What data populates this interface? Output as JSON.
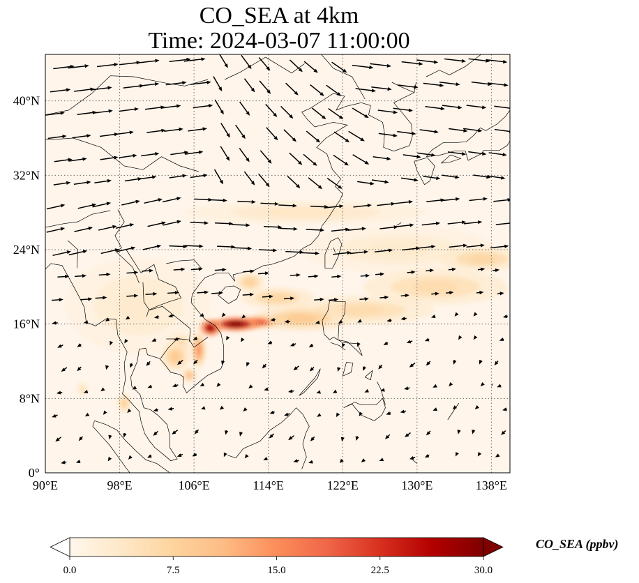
{
  "title": {
    "line1": "CO_SEA at 4km",
    "line2": "Time: 2024-03-07 11:00:00"
  },
  "map": {
    "projection": "PlateCarree",
    "lon_range": [
      90,
      140
    ],
    "lat_range": [
      0,
      45
    ],
    "lon_ticks": [
      {
        "value": 90,
        "label": "90°E"
      },
      {
        "value": 98,
        "label": "98°E"
      },
      {
        "value": 106,
        "label": "106°E"
      },
      {
        "value": 114,
        "label": "114°E"
      },
      {
        "value": 122,
        "label": "122°E"
      },
      {
        "value": 130,
        "label": "130°E"
      },
      {
        "value": 138,
        "label": "138°E"
      }
    ],
    "lat_ticks": [
      {
        "value": 0,
        "label": "0°"
      },
      {
        "value": 8,
        "label": "8°N"
      },
      {
        "value": 16,
        "label": "16°N"
      },
      {
        "value": 24,
        "label": "24°N"
      },
      {
        "value": 32,
        "label": "32°N"
      },
      {
        "value": 40,
        "label": "40°N"
      }
    ],
    "gridlines": "dotted",
    "background_color": "#fff5eb",
    "plumes": [
      {
        "lon": 110.5,
        "lat": 16.0,
        "value": 30,
        "spread_lon": 2.0,
        "spread_lat": 0.6
      },
      {
        "lon": 107.8,
        "lat": 15.6,
        "value": 28,
        "spread_lon": 0.9,
        "spread_lat": 0.7
      },
      {
        "lon": 113.0,
        "lat": 16.2,
        "value": 20,
        "spread_lon": 1.5,
        "spread_lat": 0.5
      },
      {
        "lon": 117.5,
        "lat": 16.6,
        "value": 9,
        "spread_lon": 4.0,
        "spread_lat": 1.0
      },
      {
        "lon": 124.0,
        "lat": 17.5,
        "value": 6,
        "spread_lon": 6.0,
        "spread_lat": 1.2
      },
      {
        "lon": 132.0,
        "lat": 20.0,
        "value": 6,
        "spread_lon": 6.0,
        "spread_lat": 1.5
      },
      {
        "lon": 137.0,
        "lat": 23.0,
        "value": 7,
        "spread_lon": 3.5,
        "spread_lat": 1.0
      },
      {
        "lon": 112.0,
        "lat": 20.5,
        "value": 8,
        "spread_lon": 1.2,
        "spread_lat": 0.8
      },
      {
        "lon": 115.0,
        "lat": 18.8,
        "value": 7,
        "spread_lon": 3.0,
        "spread_lat": 0.9
      },
      {
        "lon": 106.5,
        "lat": 13.2,
        "value": 14,
        "spread_lon": 0.6,
        "spread_lat": 1.4
      },
      {
        "lon": 104.0,
        "lat": 12.5,
        "value": 9,
        "spread_lon": 1.2,
        "spread_lat": 1.2
      },
      {
        "lon": 105.5,
        "lat": 10.5,
        "value": 10,
        "spread_lon": 0.6,
        "spread_lat": 0.6
      },
      {
        "lon": 104.5,
        "lat": 14.0,
        "value": 6,
        "spread_lon": 1.0,
        "spread_lat": 0.8
      },
      {
        "lon": 98.5,
        "lat": 7.5,
        "value": 8,
        "spread_lon": 0.6,
        "spread_lat": 0.8
      },
      {
        "lon": 94.0,
        "lat": 9.0,
        "value": 5,
        "spread_lon": 0.5,
        "spread_lat": 0.6
      },
      {
        "lon": 118.0,
        "lat": 28.0,
        "value": 4,
        "spread_lon": 10.0,
        "spread_lat": 1.0
      },
      {
        "lon": 100.0,
        "lat": 18.0,
        "value": 3,
        "spread_lon": 6.0,
        "spread_lat": 4.0
      },
      {
        "lon": 128.0,
        "lat": 24.0,
        "value": 3,
        "spread_lon": 8.0,
        "spread_lat": 2.0
      }
    ],
    "wind_vectors": "quiver field: north of ~22°N predominantly westerly/northwesterly flow (strong); south of ~20°N weak easterly/northeasterly flow"
  },
  "colorbar": {
    "label": "CO_SEA (ppbv)",
    "range": [
      0,
      30
    ],
    "cmap": "OrRd",
    "extend": "both",
    "ticks": [
      {
        "value": 0,
        "label": "0.0"
      },
      {
        "value": 7.5,
        "label": "7.5"
      },
      {
        "value": 15,
        "label": "15.0"
      },
      {
        "value": 22.5,
        "label": "22.5"
      },
      {
        "value": 30,
        "label": "30.0"
      }
    ],
    "colors": [
      "#fff7ec",
      "#fee8c8",
      "#fdd49e",
      "#fdbb84",
      "#fc8d59",
      "#ef6548",
      "#d7301f",
      "#b30000",
      "#7f0000"
    ]
  }
}
